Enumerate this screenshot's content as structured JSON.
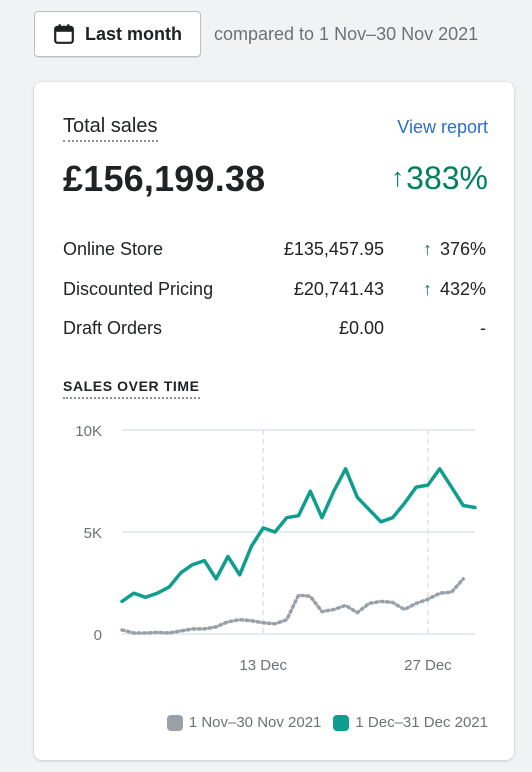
{
  "date_range": {
    "label": "Last month",
    "compare_text": "compared to 1 Nov–30 Nov 2021"
  },
  "card": {
    "title": "Total sales",
    "view_report": "View report",
    "total": "£156,199.38",
    "total_change": "383%",
    "rows": [
      {
        "name": "Online Store",
        "value": "£135,457.95",
        "change": "376%",
        "arrow": "↑"
      },
      {
        "name": "Discounted Pricing",
        "value": "£20,741.43",
        "change": "432%",
        "arrow": "↑"
      },
      {
        "name": "Draft Orders",
        "value": "£0.00",
        "change": "-",
        "arrow": ""
      }
    ],
    "sales_over_time_label": "SALES OVER TIME"
  },
  "colors": {
    "current": "#0f9e8e",
    "previous": "#98a0a8",
    "positive": "#007f5f",
    "link": "#2c6ecb"
  },
  "chart_data": {
    "type": "line",
    "ylim": [
      0,
      10000
    ],
    "y_ticks": [
      0,
      5000,
      10000
    ],
    "y_tick_labels": [
      "0",
      "5K",
      "10K"
    ],
    "x_tick_labels": [
      "13 Dec",
      "27 Dec"
    ],
    "x_tick_days": [
      13,
      27
    ],
    "x_domain": [
      1,
      31
    ],
    "series": [
      {
        "name": "1 Nov–30 Nov 2021",
        "style": "dotted",
        "x": [
          1,
          2,
          3,
          4,
          5,
          6,
          7,
          8,
          9,
          10,
          11,
          12,
          13,
          14,
          15,
          16,
          17,
          18,
          19,
          20,
          21,
          22,
          23,
          24,
          25,
          26,
          27,
          28,
          29,
          30
        ],
        "values": [
          200,
          50,
          50,
          80,
          50,
          150,
          250,
          250,
          350,
          600,
          700,
          650,
          550,
          500,
          700,
          1900,
          1850,
          1100,
          1200,
          1400,
          1050,
          1500,
          1600,
          1550,
          1200,
          1500,
          1700,
          2000,
          2050,
          2700
        ]
      },
      {
        "name": "1 Dec–31 Dec 2021",
        "style": "solid",
        "x": [
          1,
          2,
          3,
          4,
          5,
          6,
          7,
          8,
          9,
          10,
          11,
          12,
          13,
          14,
          15,
          16,
          17,
          18,
          19,
          20,
          21,
          22,
          23,
          24,
          25,
          26,
          27,
          28,
          29,
          30,
          31
        ],
        "values": [
          1600,
          2000,
          1800,
          2000,
          2300,
          3000,
          3400,
          3600,
          2700,
          3800,
          2900,
          4300,
          5200,
          5000,
          5700,
          5800,
          7000,
          5700,
          7000,
          8100,
          6700,
          6100,
          5500,
          5700,
          6400,
          7200,
          7300,
          8100,
          7200,
          6300,
          6200
        ]
      }
    ]
  }
}
